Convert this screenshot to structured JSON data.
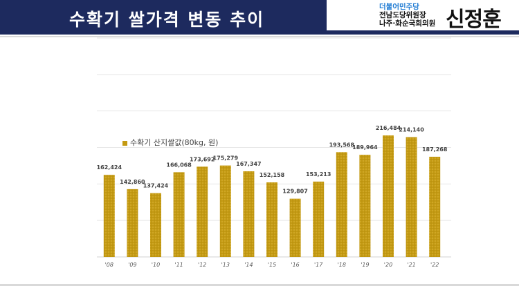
{
  "header": {
    "title": "수확기 쌀가격 변동 추이",
    "party_line1": "더불어민주당",
    "party_line2": "전남도당위원장",
    "party_line3": "나주·화순국회의원",
    "name": "신정훈"
  },
  "colors": {
    "header_bg": "#1d2a5e",
    "bar": "#c49a12",
    "party_blue": "#1f7bd3"
  },
  "chart_data": {
    "type": "bar",
    "title": "",
    "xlabel": "",
    "ylabel": "",
    "categories": [
      "'08",
      "'09",
      "'10",
      "'11",
      "'12",
      "'13",
      "'14",
      "'15",
      "'16",
      "'17",
      "'18",
      "'19",
      "'20",
      "'21",
      "'22"
    ],
    "series": [
      {
        "name": "수확기 산지쌀값(80kg, 원)",
        "values": [
          162424,
          142860,
          137424,
          166068,
          173692,
          175279,
          167347,
          152158,
          129807,
          153213,
          193568,
          189964,
          216484,
          214140,
          187268
        ],
        "labels": [
          "162,424",
          "142,860",
          "137,424",
          "166,068",
          "173,692",
          "175,279",
          "167,347",
          "152,158",
          "129,807",
          "153,213",
          "193,568",
          "189,964",
          "216,484",
          "214,140",
          "187,268"
        ]
      }
    ],
    "ylim": [
      50000,
      350000
    ],
    "grid": true,
    "legend_position": "top-left"
  }
}
